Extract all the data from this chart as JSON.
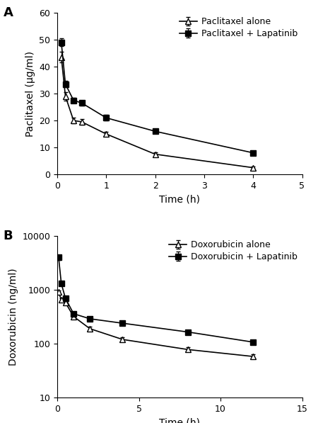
{
  "panel_A": {
    "label": "A",
    "xlabel": "Time (h)",
    "ylabel": "Paclitaxel (μg/ml)",
    "xlim": [
      0,
      5
    ],
    "ylim": [
      0,
      60
    ],
    "xticks": [
      0,
      1,
      2,
      3,
      4,
      5
    ],
    "yticks": [
      0,
      10,
      20,
      30,
      40,
      50,
      60
    ],
    "series": [
      {
        "label": "Paclitaxel alone",
        "marker": "^",
        "fillstyle": "none",
        "x": [
          0.083,
          0.167,
          0.333,
          0.5,
          1.0,
          2.0,
          4.0
        ],
        "y": [
          43.5,
          29.0,
          20.0,
          19.5,
          15.0,
          7.5,
          2.5
        ],
        "yerr": [
          2.0,
          1.5,
          1.0,
          1.0,
          0.8,
          0.7,
          0.4
        ]
      },
      {
        "label": "Paclitaxel + Lapatinib",
        "marker": "s",
        "fillstyle": "full",
        "x": [
          0.083,
          0.167,
          0.333,
          0.5,
          1.0,
          2.0,
          4.0
        ],
        "y": [
          49.0,
          33.5,
          27.5,
          26.5,
          21.0,
          16.0,
          8.0
        ],
        "yerr": [
          1.5,
          1.2,
          1.0,
          1.0,
          1.0,
          0.8,
          0.5
        ]
      }
    ]
  },
  "panel_B": {
    "label": "B",
    "xlabel": "Time (h)",
    "ylabel": "Doxorubicin (ng/ml)",
    "xlim": [
      0,
      15
    ],
    "ylim": [
      10,
      10000
    ],
    "xticks": [
      0,
      5,
      10,
      15
    ],
    "yticks_log": [
      10,
      100,
      1000,
      10000
    ],
    "ytick_labels": [
      "10",
      "100",
      "1000",
      "10000"
    ],
    "series": [
      {
        "label": "Doxorubicin alone",
        "marker": "^",
        "fillstyle": "none",
        "x": [
          0.083,
          0.25,
          0.5,
          1.0,
          2.0,
          4.0,
          8.0,
          12.0
        ],
        "y": [
          900,
          650,
          580,
          320,
          190,
          120,
          78,
          58
        ],
        "yerr": [
          60,
          40,
          30,
          20,
          15,
          10,
          7,
          5
        ]
      },
      {
        "label": "Doxorubicin + Lapatinib",
        "marker": "s",
        "fillstyle": "full",
        "x": [
          0.083,
          0.25,
          0.5,
          1.0,
          2.0,
          4.0,
          8.0,
          12.0
        ],
        "y": [
          4000,
          1300,
          700,
          360,
          290,
          240,
          165,
          107
        ],
        "yerr": [
          400,
          100,
          50,
          30,
          20,
          15,
          12,
          8
        ]
      }
    ]
  },
  "line_color": "#000000",
  "background_color": "#ffffff",
  "font_size": 10,
  "legend_font_size": 9,
  "tick_font_size": 9
}
